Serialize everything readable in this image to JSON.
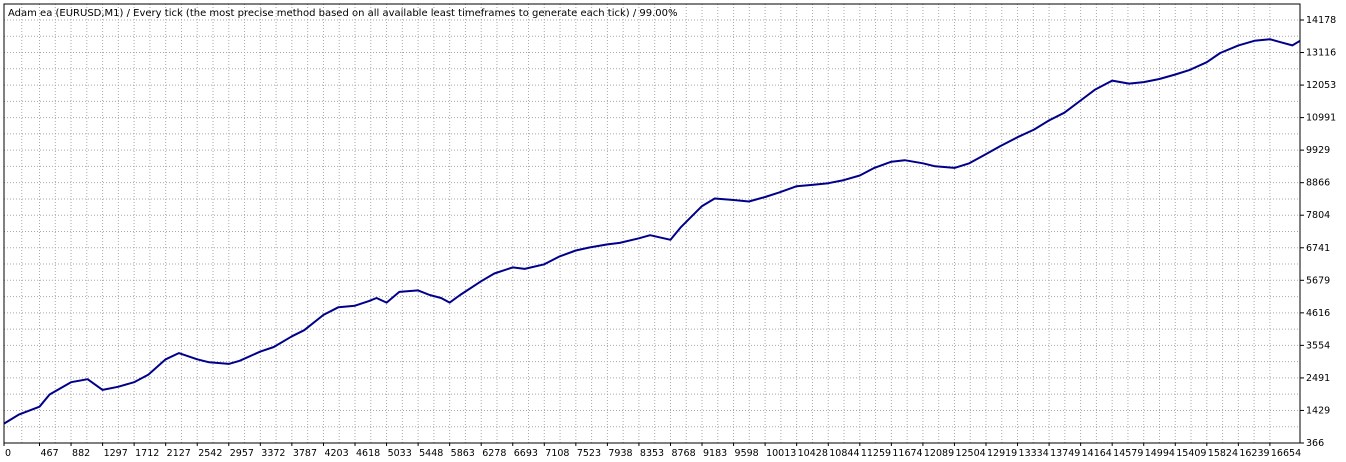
{
  "chart_data": {
    "type": "line",
    "title": "Adam ea (EURUSD,M1) / Every tick (the most precise method based on all available least timeframes to generate each tick) / 99.00%",
    "xlabel": "",
    "ylabel": "",
    "x_ticks": [
      0,
      467,
      882,
      1297,
      1712,
      2127,
      2542,
      2957,
      3372,
      3787,
      4203,
      4618,
      5033,
      5448,
      5863,
      6278,
      6693,
      7108,
      7523,
      7938,
      8353,
      8768,
      9183,
      9598,
      10013,
      10428,
      10844,
      11259,
      11674,
      12089,
      12504,
      12919,
      13334,
      13749,
      14164,
      14579,
      14994,
      15409,
      15824,
      16239,
      16654
    ],
    "y_ticks": [
      366,
      1429,
      2491,
      3554,
      4616,
      5679,
      6741,
      7804,
      8866,
      9929,
      10991,
      12053,
      13116,
      14178
    ],
    "xlim": [
      0,
      17050
    ],
    "ylim": [
      366,
      14178
    ],
    "grid": true,
    "colors": {
      "line": "#00008b",
      "grid": "#a8a8a8",
      "frame": "#000000",
      "background": "#ffffff"
    },
    "series": [
      {
        "x": [
          0,
          200,
          467,
          600,
          882,
          1100,
          1297,
          1500,
          1712,
          1900,
          2127,
          2300,
          2542,
          2700,
          2957,
          3100,
          3372,
          3550,
          3787,
          3950,
          4203,
          4400,
          4618,
          4800,
          4900,
          5033,
          5200,
          5448,
          5600,
          5750,
          5863,
          6000,
          6278,
          6450,
          6693,
          6850,
          7108,
          7300,
          7523,
          7700,
          7938,
          8100,
          8353,
          8500,
          8768,
          8900,
          9183,
          9350,
          9598,
          9800,
          10013,
          10200,
          10428,
          10650,
          10844,
          11050,
          11259,
          11450,
          11674,
          11850,
          12089,
          12250,
          12504,
          12700,
          12919,
          13100,
          13334,
          13550,
          13749,
          13950,
          14164,
          14350,
          14579,
          14800,
          14994,
          15200,
          15409,
          15600,
          15824,
          16000,
          16239,
          16450,
          16654,
          16800,
          16950,
          17050
        ],
        "values": [
          1000,
          1300,
          1550,
          1950,
          2350,
          2450,
          2100,
          2200,
          2350,
          2600,
          3100,
          3300,
          3100,
          3000,
          2950,
          3050,
          3350,
          3500,
          3850,
          4050,
          4550,
          4800,
          4850,
          5000,
          5100,
          4950,
          5300,
          5350,
          5200,
          5100,
          4950,
          5200,
          5650,
          5900,
          6100,
          6050,
          6200,
          6450,
          6650,
          6750,
          6850,
          6900,
          7050,
          7150,
          7000,
          7400,
          8100,
          8350,
          8300,
          8250,
          8400,
          8550,
          8750,
          8800,
          8850,
          8950,
          9100,
          9350,
          9550,
          9600,
          9500,
          9400,
          9350,
          9500,
          9800,
          10050,
          10350,
          10600,
          10900,
          11150,
          11550,
          11900,
          12200,
          12100,
          12150,
          12250,
          12400,
          12550,
          12800,
          13100,
          13350,
          13500,
          13550,
          13450,
          13350,
          13500
        ]
      }
    ]
  }
}
